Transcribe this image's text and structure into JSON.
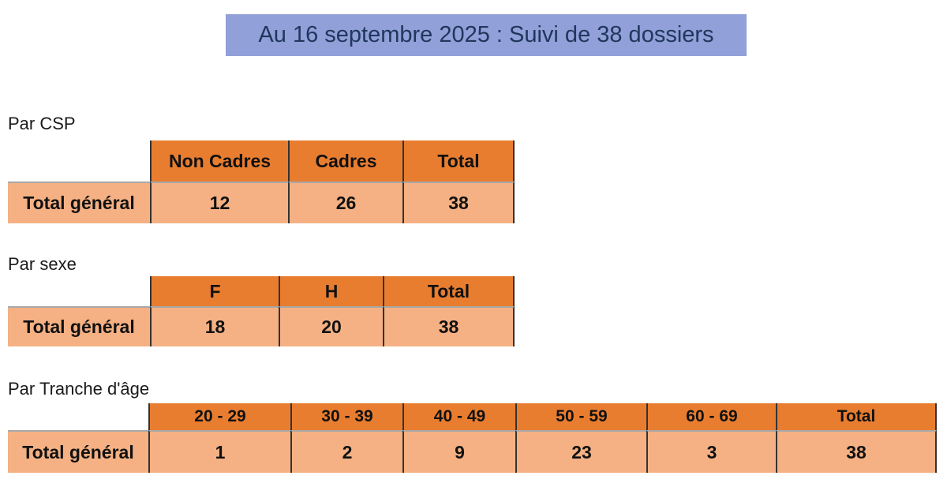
{
  "banner": {
    "text": "Au 16 septembre 2025 : Suivi de 38 dossiers",
    "bg_color": "#91a0d8",
    "text_color": "#20375d"
  },
  "colors": {
    "header_bg": "#e87d30",
    "row_bg": "#f5b183",
    "column_border": "#333333",
    "divider": "#a8a8a8"
  },
  "tables": [
    {
      "section_label": "Par CSP",
      "row_label": "Total général",
      "columns": [
        "Non Cadres",
        "Cadres",
        "Total"
      ],
      "values": [
        "12",
        "26",
        "38"
      ]
    },
    {
      "section_label": "Par sexe",
      "row_label": "Total général",
      "columns": [
        "F",
        "H",
        "Total"
      ],
      "values": [
        "18",
        "20",
        "38"
      ]
    },
    {
      "section_label": "Par Tranche d'âge",
      "row_label": "Total général",
      "columns": [
        "20 - 29",
        "30 - 39",
        "40 - 49",
        "50 - 59",
        "60 - 69",
        "Total"
      ],
      "values": [
        "1",
        "2",
        "9",
        "23",
        "3",
        "38"
      ]
    }
  ]
}
